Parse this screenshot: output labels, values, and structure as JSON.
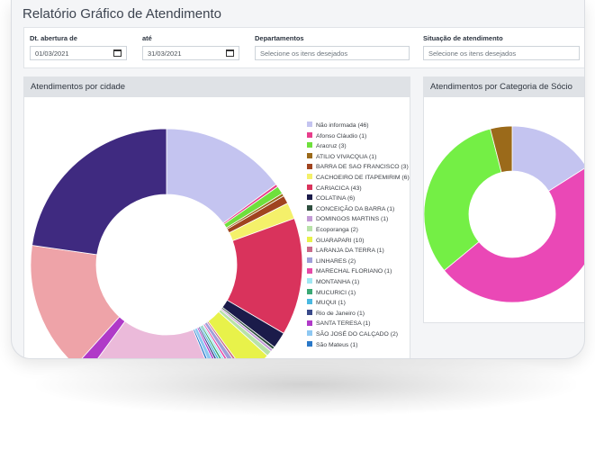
{
  "page": {
    "title": "Relatório Gráfico de Atendimento"
  },
  "filters": {
    "date_start": {
      "label": "Dt. abertura de",
      "value": "01/03/2021"
    },
    "date_end": {
      "label": "até",
      "value": "31/03/2021"
    },
    "departments": {
      "label": "Departamentos",
      "placeholder": "Selecione os itens desejados"
    },
    "status": {
      "label": "Situação de atendimento",
      "placeholder": "Selecione os itens desejados"
    }
  },
  "city_card": {
    "title": "Atendimentos por cidade",
    "legend": [
      {
        "label": "Não informada (46)",
        "color": "#c4c4f0"
      },
      {
        "label": "Afonso Cláudio (1)",
        "color": "#e83e8c"
      },
      {
        "label": "Aracruz (3)",
        "color": "#6fe03c"
      },
      {
        "label": "ATILIO VIVACQUA (1)",
        "color": "#9b6a1a"
      },
      {
        "label": "BARRA DE SAO FRANCISCO (3)",
        "color": "#a0441f"
      },
      {
        "label": "CACHOEIRO DE ITAPEMIRIM (6)",
        "color": "#f4f06a"
      },
      {
        "label": "CARIACICA (43)",
        "color": "#d9335c"
      },
      {
        "label": "COLATINA (6)",
        "color": "#1b1b4a"
      },
      {
        "label": "CONCEIÇÃO DA BARRA (1)",
        "color": "#2f4f3f"
      },
      {
        "label": "DOMINGOS MARTINS (1)",
        "color": "#c39ad6"
      },
      {
        "label": "Ecoporanga (2)",
        "color": "#b8e2a8"
      },
      {
        "label": "GUARAPARI (10)",
        "color": "#e8f24a"
      },
      {
        "label": "LARANJA DA TERRA (1)",
        "color": "#c96a8a"
      },
      {
        "label": "LINHARES (2)",
        "color": "#9f9fd9"
      },
      {
        "label": "MARECHAL FLORIANO (1)",
        "color": "#e64aa8"
      },
      {
        "label": "MONTANHA (1)",
        "color": "#9fe7f2"
      },
      {
        "label": "MUCURICI (1)",
        "color": "#3aa874"
      },
      {
        "label": "MUQUI (1)",
        "color": "#4ab8e0"
      },
      {
        "label": "Rio de Janeiro (1)",
        "color": "#3a4a8a"
      },
      {
        "label": "SANTA TERESA (1)",
        "color": "#b03ac8"
      },
      {
        "label": "SÃO JOSÉ DO CALÇADO (2)",
        "color": "#8ec8f2"
      },
      {
        "label": "São Mateus (1)",
        "color": "#2a78c8"
      }
    ]
  },
  "category_card": {
    "title": "Atendimentos por Categoria de Sócio"
  },
  "chart_data": [
    {
      "type": "pie",
      "title": "Atendimentos por cidade",
      "categories": [
        "Não informada",
        "Afonso Cláudio",
        "Aracruz",
        "ATILIO VIVACQUA",
        "BARRA DE SAO FRANCISCO",
        "CACHOEIRO DE ITAPEMIRIM",
        "CARIACICA",
        "COLATINA",
        "CONCEIÇÃO DA BARRA",
        "DOMINGOS MARTINS",
        "Ecoporanga",
        "GUARAPARI",
        "LARANJA DA TERRA",
        "LINHARES",
        "MARECHAL FLORIANO",
        "MONTANHA",
        "MUCURICI",
        "MUQUI",
        "Rio de Janeiro",
        "SANTA TERESA",
        "SÃO JOSÉ DO CALÇADO",
        "São Mateus",
        "Outras"
      ],
      "values": [
        46,
        1,
        3,
        1,
        3,
        6,
        43,
        6,
        1,
        1,
        2,
        10,
        1,
        2,
        1,
        1,
        1,
        1,
        1,
        1,
        2,
        1,
        178
      ],
      "colors": [
        "#c4c4f0",
        "#e83e8c",
        "#6fe03c",
        "#9b6a1a",
        "#a0441f",
        "#f4f06a",
        "#d9335c",
        "#1b1b4a",
        "#2f4f3f",
        "#c39ad6",
        "#b8e2a8",
        "#e8f24a",
        "#c96a8a",
        "#9f9fd9",
        "#e64aa8",
        "#9fe7f2",
        "#3aa874",
        "#4ab8e0",
        "#3a4a8a",
        "#b03ac8",
        "#8ec8f2",
        "#2a78c8",
        "#ebbada"
      ],
      "outer_tail": {
        "values": [
          50,
          5,
          48,
          70
        ],
        "colors": [
          "#ebbada",
          "#b03ac8",
          "#eea3a8",
          "#3f2a80"
        ]
      }
    },
    {
      "type": "pie",
      "title": "Atendimentos por Categoria de Sócio",
      "values": [
        16,
        48,
        32,
        4
      ],
      "colors": [
        "#c4c4f0",
        "#ea48b6",
        "#74ef45",
        "#9b6a1a"
      ]
    }
  ]
}
